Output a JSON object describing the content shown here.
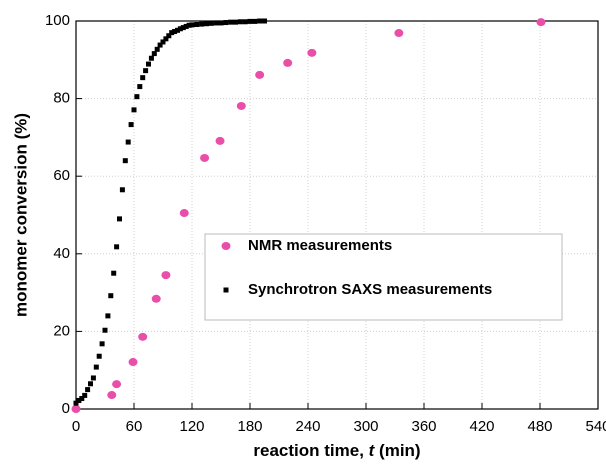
{
  "chart_data": {
    "type": "scatter",
    "xlabel": [
      "reaction time, ",
      "t",
      " (min)"
    ],
    "ylabel": "monomer conversion (%)",
    "xlim": [
      0,
      540
    ],
    "xticks": [
      0,
      60,
      120,
      180,
      240,
      300,
      360,
      420,
      480,
      540
    ],
    "ylim": [
      0,
      100
    ],
    "yticks": [
      0,
      20,
      40,
      60,
      80,
      100
    ],
    "grid": true,
    "series": [
      {
        "name": "NMR measurements",
        "color": "#e94fa9",
        "marker": "circle",
        "x": [
          0,
          37,
          42,
          59,
          69,
          83,
          93,
          112,
          133,
          149,
          171,
          190,
          219,
          244,
          334,
          481
        ],
        "values": [
          0,
          3.6,
          6.4,
          12.1,
          18.6,
          28.4,
          34.5,
          50.5,
          64.7,
          69.1,
          78.1,
          86.1,
          89.2,
          91.8,
          96.9,
          99.7
        ]
      },
      {
        "name": "Synchrotron SAXS measurements",
        "color": "#000000",
        "marker": "square",
        "x": [
          0,
          3,
          6,
          9,
          12,
          15,
          18,
          21,
          24,
          27,
          30,
          33,
          36,
          39,
          42,
          45,
          48,
          51,
          54,
          57,
          60,
          63,
          66,
          69,
          72,
          75,
          78,
          81,
          84,
          87,
          90,
          93,
          96,
          99,
          102,
          105,
          108,
          111,
          114,
          117,
          120,
          125,
          130,
          135,
          140,
          145,
          150,
          155,
          160,
          165,
          170,
          175,
          180,
          185,
          190,
          195
        ],
        "values": [
          1.5,
          2.2,
          2.7,
          3.5,
          5,
          6.5,
          8,
          10.8,
          13.6,
          16.8,
          20.3,
          24,
          29.2,
          35,
          41.8,
          49,
          56.5,
          64,
          68.8,
          73.3,
          77.1,
          80.5,
          83.1,
          85.4,
          87.2,
          88.9,
          90.4,
          91.6,
          92.7,
          93.8,
          94.6,
          95.4,
          96.2,
          97,
          97.3,
          97.6,
          98,
          98.3,
          98.6,
          98.9,
          99,
          99.1,
          99.2,
          99.3,
          99.4,
          99.5,
          99.5,
          99.6,
          99.7,
          99.7,
          99.8,
          99.8,
          99.9,
          99.9,
          100,
          100
        ]
      }
    ]
  }
}
